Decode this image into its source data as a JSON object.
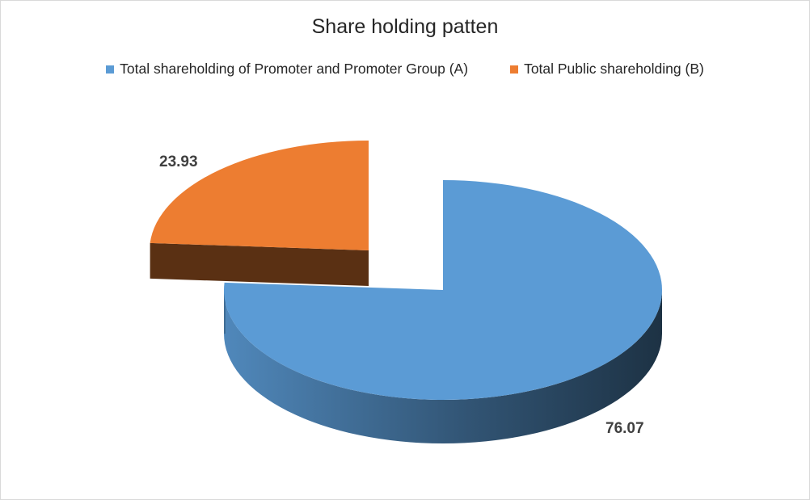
{
  "chart_data": {
    "type": "pie",
    "title": "Share holding patten",
    "categories": [
      "Total shareholding of Promoter and Promoter Group (A)",
      "Total Public shareholding (B)"
    ],
    "values": [
      76.07,
      23.93
    ],
    "data_labels": [
      "76.07",
      "23.93"
    ],
    "colors": [
      "#5b9bd5",
      "#ed7d31"
    ],
    "style": "3d-exploded",
    "legend_position": "top"
  }
}
